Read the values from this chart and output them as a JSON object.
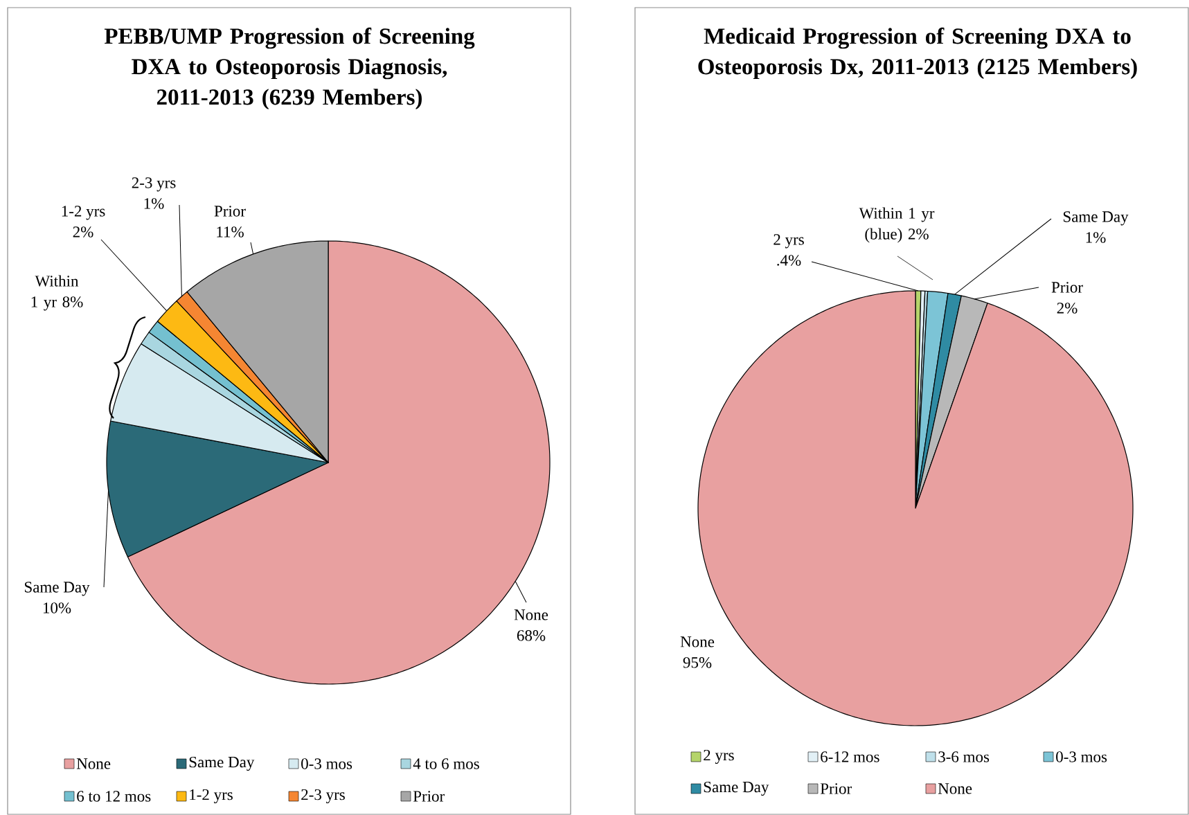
{
  "chart_data": [
    {
      "type": "pie",
      "title": "PEBB/UMP Progression of Screening DXA to Osteoporosis Diagnosis, 2011-2013 (6239 Members)",
      "categories": [
        "None",
        "Same Day",
        "0-3 mos",
        "4 to 6 mos",
        "6 to 12 mos",
        "1-2 yrs",
        "2-3 yrs",
        "Prior"
      ],
      "values": [
        68,
        10,
        6,
        1,
        1,
        2,
        1,
        11
      ],
      "colors": [
        "#e8a0a0",
        "#2b6a78",
        "#d6eaf0",
        "#a9d6e0",
        "#74c0d0",
        "#fdb913",
        "#f58632",
        "#a6a6a6"
      ],
      "value_labels": [
        "68%",
        "10%",
        null,
        null,
        null,
        "2%",
        "1%",
        "11%"
      ],
      "annotations": [
        "Within 1 yr 8%"
      ],
      "legend": "bottom"
    },
    {
      "type": "pie",
      "title": "Medicaid Progression of Screening DXA to Osteoporosis Dx, 2011-2013 (2125 Members)",
      "categories": [
        "2 yrs",
        "6-12 mos",
        "3-6 mos",
        "0-3 mos",
        "Same Day",
        "Prior",
        "None"
      ],
      "values": [
        0.4,
        0.3,
        0.2,
        1.5,
        1,
        2,
        95
      ],
      "colors": [
        "#b5d46b",
        "#e2f0f6",
        "#bfe0ea",
        "#7cc4d6",
        "#2f8ba3",
        "#b8b8b8",
        "#e8a0a0"
      ],
      "value_labels": [
        ".4%",
        null,
        null,
        null,
        "1%",
        "2%",
        "95%"
      ],
      "annotations": [
        "Within 1 yr (blue) 2%"
      ],
      "legend": "bottom"
    }
  ]
}
